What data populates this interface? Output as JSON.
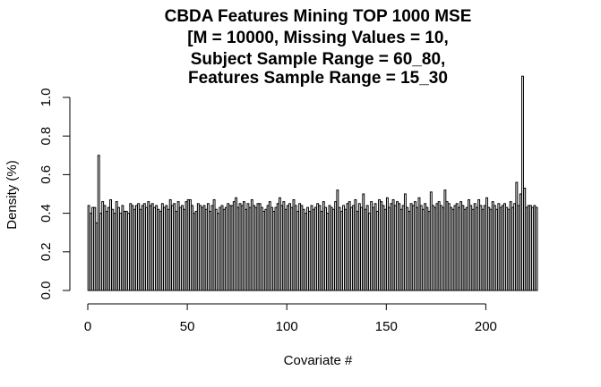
{
  "chart_data": {
    "type": "bar",
    "title_lines": [
      "CBDA Features Mining TOP 1000 MSE",
      "[M = 10000, Missing Values = 10,",
      "Subject Sample Range = 60_80,",
      "Features Sample Range = 15_30"
    ],
    "xlabel": "Covariate #",
    "ylabel": "Density (%)",
    "xlim": [
      0,
      231
    ],
    "ylim": [
      0,
      1.1
    ],
    "x_ticks": [
      0,
      50,
      100,
      150,
      200
    ],
    "y_ticks": [
      0.0,
      0.2,
      0.4,
      0.6,
      0.8,
      1.0
    ],
    "x_tick_labels": [
      "0",
      "50",
      "100",
      "150",
      "200"
    ],
    "y_tick_labels": [
      "0.0",
      "0.2",
      "0.4",
      "0.6",
      "0.8",
      "1.0"
    ],
    "grid": false,
    "bar_fill": "#ffffff",
    "bar_stroke": "#000000",
    "values": [
      0.44,
      0.4,
      0.43,
      0.43,
      0.35,
      0.7,
      0.4,
      0.46,
      0.44,
      0.41,
      0.43,
      0.47,
      0.42,
      0.4,
      0.46,
      0.43,
      0.4,
      0.44,
      0.41,
      0.41,
      0.4,
      0.45,
      0.44,
      0.42,
      0.44,
      0.45,
      0.42,
      0.44,
      0.45,
      0.43,
      0.46,
      0.44,
      0.45,
      0.43,
      0.44,
      0.42,
      0.41,
      0.45,
      0.43,
      0.44,
      0.42,
      0.47,
      0.44,
      0.45,
      0.41,
      0.46,
      0.43,
      0.44,
      0.42,
      0.46,
      0.47,
      0.47,
      0.44,
      0.4,
      0.41,
      0.45,
      0.44,
      0.43,
      0.44,
      0.42,
      0.45,
      0.41,
      0.44,
      0.47,
      0.42,
      0.4,
      0.43,
      0.44,
      0.42,
      0.43,
      0.45,
      0.44,
      0.44,
      0.46,
      0.48,
      0.43,
      0.45,
      0.44,
      0.46,
      0.42,
      0.45,
      0.43,
      0.47,
      0.44,
      0.43,
      0.45,
      0.45,
      0.43,
      0.41,
      0.42,
      0.44,
      0.46,
      0.43,
      0.41,
      0.43,
      0.45,
      0.48,
      0.44,
      0.46,
      0.42,
      0.44,
      0.45,
      0.43,
      0.47,
      0.44,
      0.41,
      0.45,
      0.44,
      0.42,
      0.4,
      0.43,
      0.41,
      0.44,
      0.42,
      0.43,
      0.45,
      0.44,
      0.41,
      0.46,
      0.43,
      0.4,
      0.44,
      0.43,
      0.42,
      0.46,
      0.52,
      0.43,
      0.41,
      0.44,
      0.42,
      0.45,
      0.46,
      0.43,
      0.44,
      0.47,
      0.41,
      0.45,
      0.43,
      0.5,
      0.42,
      0.44,
      0.4,
      0.46,
      0.43,
      0.45,
      0.41,
      0.47,
      0.46,
      0.44,
      0.42,
      0.48,
      0.43,
      0.45,
      0.47,
      0.44,
      0.46,
      0.45,
      0.42,
      0.44,
      0.5,
      0.43,
      0.41,
      0.45,
      0.44,
      0.46,
      0.43,
      0.48,
      0.44,
      0.42,
      0.45,
      0.43,
      0.41,
      0.51,
      0.44,
      0.43,
      0.45,
      0.46,
      0.44,
      0.43,
      0.52,
      0.46,
      0.45,
      0.43,
      0.42,
      0.44,
      0.45,
      0.43,
      0.46,
      0.44,
      0.42,
      0.43,
      0.47,
      0.44,
      0.42,
      0.45,
      0.43,
      0.47,
      0.44,
      0.42,
      0.44,
      0.48,
      0.43,
      0.42,
      0.46,
      0.44,
      0.42,
      0.45,
      0.43,
      0.44,
      0.45,
      0.43,
      0.42,
      0.46,
      0.43,
      0.45,
      0.56,
      0.44,
      0.5,
      1.11,
      0.53,
      0.43,
      0.44,
      0.44,
      0.43,
      0.44,
      0.43
    ]
  }
}
